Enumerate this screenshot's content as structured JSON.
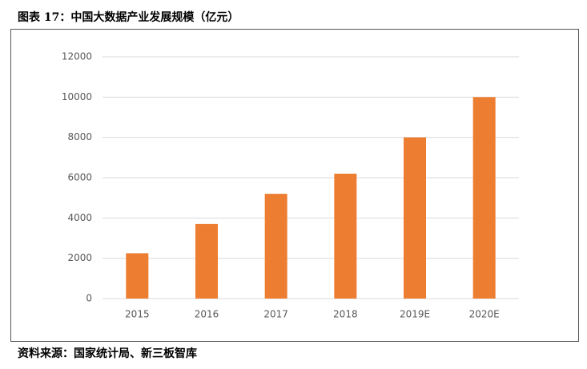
{
  "chart_data": {
    "type": "bar",
    "title": "图表 17：中国大数据产业发展规模（亿元）",
    "source": "资料来源：国家统计局、新三板智库",
    "categories": [
      "2015",
      "2016",
      "2017",
      "2018",
      "2019E",
      "2020E"
    ],
    "values": [
      2250,
      3700,
      5200,
      6200,
      8000,
      10000
    ],
    "color": "#ed7d31",
    "ylim": [
      0,
      12000
    ],
    "yticks": [
      0,
      2000,
      4000,
      6000,
      8000,
      10000,
      12000
    ],
    "grid": true
  }
}
